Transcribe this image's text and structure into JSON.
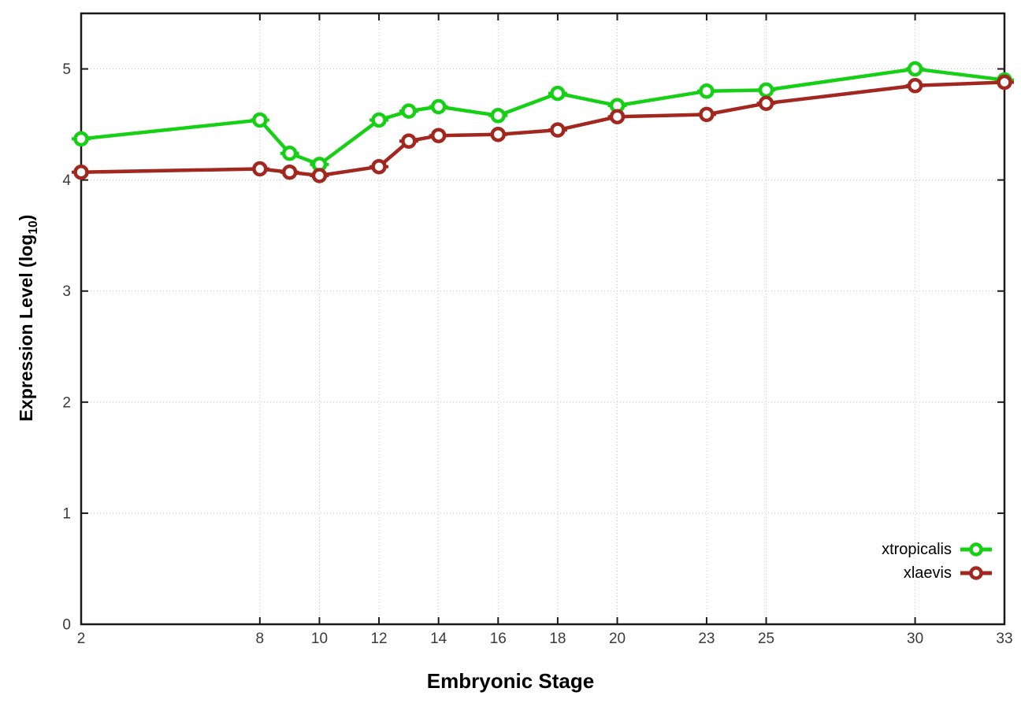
{
  "chart_data": {
    "type": "line",
    "title": "",
    "xlabel": "Embryonic Stage",
    "ylabel": "Expression Level (log10)",
    "ylabel_parts": {
      "main": "Expression Level (log",
      "sub": "10",
      "close": ")"
    },
    "xlim": [
      2,
      33
    ],
    "ylim": [
      0,
      5.5
    ],
    "xticks": [
      2,
      8,
      10,
      12,
      14,
      16,
      18,
      20,
      23,
      25,
      30,
      33
    ],
    "yticks": [
      0,
      1,
      2,
      3,
      4,
      5
    ],
    "grid": true,
    "legend_position": "inside-bottom-right",
    "x": [
      2,
      8,
      9,
      10,
      12,
      13,
      14,
      16,
      18,
      20,
      23,
      25,
      30,
      33
    ],
    "series": [
      {
        "name": "xtropicalis",
        "color": "#16d016",
        "values": [
          4.37,
          4.54,
          4.24,
          4.14,
          4.54,
          4.62,
          4.66,
          4.58,
          4.78,
          4.67,
          4.8,
          4.81,
          5.0,
          4.9
        ]
      },
      {
        "name": "xlaevis",
        "color": "#a1271f",
        "values": [
          4.07,
          4.1,
          4.07,
          4.04,
          4.12,
          4.35,
          4.4,
          4.41,
          4.45,
          4.57,
          4.59,
          4.69,
          4.85,
          4.88
        ]
      }
    ],
    "colors": {
      "grid": "#c8c8c8",
      "border": "#1a1a1a",
      "tick_label": "#3a3a3a"
    }
  }
}
